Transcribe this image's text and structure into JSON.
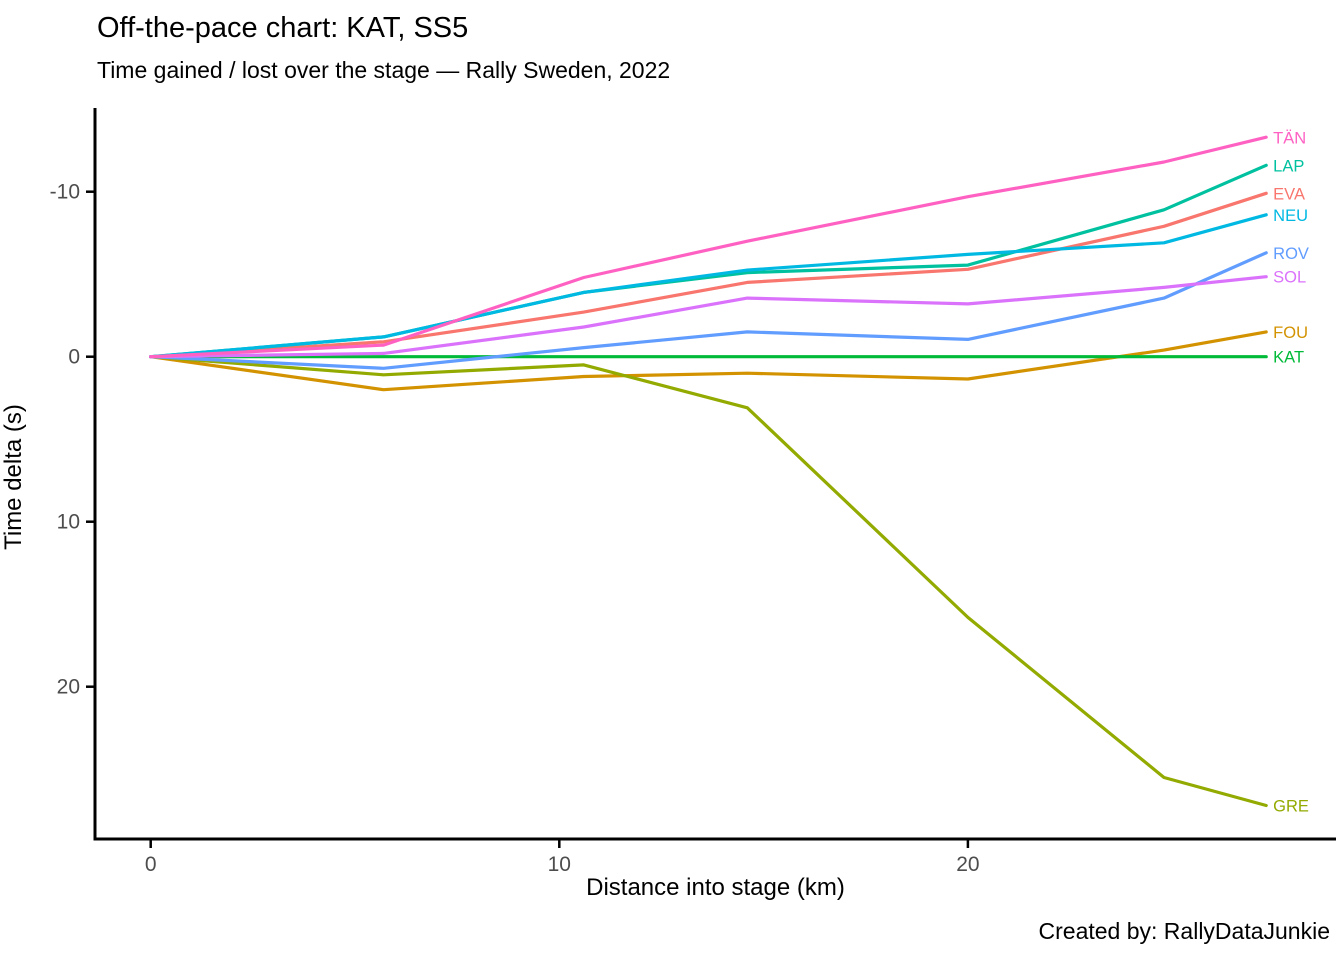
{
  "header": {
    "title": "Off-the-pace chart: KAT, SS5",
    "subtitle": "Time gained / lost over the stage — Rally Sweden, 2022"
  },
  "caption": "Created by: RallyDataJunkie",
  "chart_data": {
    "type": "line",
    "title": "Off-the-pace chart: KAT, SS5",
    "subtitle": "Time gained / lost over the stage — Rally Sweden, 2022",
    "xlabel": "Distance into stage (km)",
    "ylabel": "Time delta (s)",
    "x_ticks": [
      0,
      10,
      20
    ],
    "y_ticks": [
      -10,
      0,
      10,
      20
    ],
    "y_axis_reversed": true,
    "xlim": [
      -1.4,
      29.2
    ],
    "ylim": [
      -15,
      29.3
    ],
    "grid": false,
    "legend_position": "end-of-line-labels",
    "axis_color": "#000000",
    "tick_label_color": "#4d4d4d",
    "x_km": [
      0,
      5.7,
      10.6,
      14.6,
      20.0,
      24.8,
      27.3
    ],
    "series": [
      {
        "name": "EVA",
        "color": "#F8766D",
        "values": [
          0,
          -0.9,
          -2.7,
          -4.5,
          -5.3,
          -7.9,
          -9.9
        ]
      },
      {
        "name": "FOU",
        "color": "#D39200",
        "values": [
          0,
          2.0,
          1.2,
          1.0,
          1.35,
          -0.4,
          -1.5
        ]
      },
      {
        "name": "GRE",
        "color": "#93AA00",
        "values": [
          0,
          1.1,
          0.5,
          3.1,
          15.8,
          25.5,
          27.2
        ]
      },
      {
        "name": "KAT",
        "color": "#00BA38",
        "values": [
          0,
          0,
          0,
          0,
          0,
          0,
          0
        ]
      },
      {
        "name": "LAP",
        "color": "#00C19F",
        "values": [
          0,
          -1.2,
          -3.9,
          -5.1,
          -5.55,
          -8.9,
          -11.6
        ]
      },
      {
        "name": "NEU",
        "color": "#00B9E3",
        "values": [
          0,
          -1.2,
          -3.9,
          -5.25,
          -6.2,
          -6.9,
          -8.6
        ]
      },
      {
        "name": "ROV",
        "color": "#619CFF",
        "values": [
          0,
          0.7,
          -0.55,
          -1.5,
          -1.05,
          -3.55,
          -6.3
        ]
      },
      {
        "name": "SOL",
        "color": "#DB72FB",
        "values": [
          0,
          -0.2,
          -1.8,
          -3.55,
          -3.2,
          -4.2,
          -4.85
        ]
      },
      {
        "name": "TÄN",
        "color": "#FF61C3",
        "values": [
          0,
          -0.7,
          -4.8,
          -7.0,
          -9.7,
          -11.8,
          -13.3
        ]
      }
    ]
  }
}
